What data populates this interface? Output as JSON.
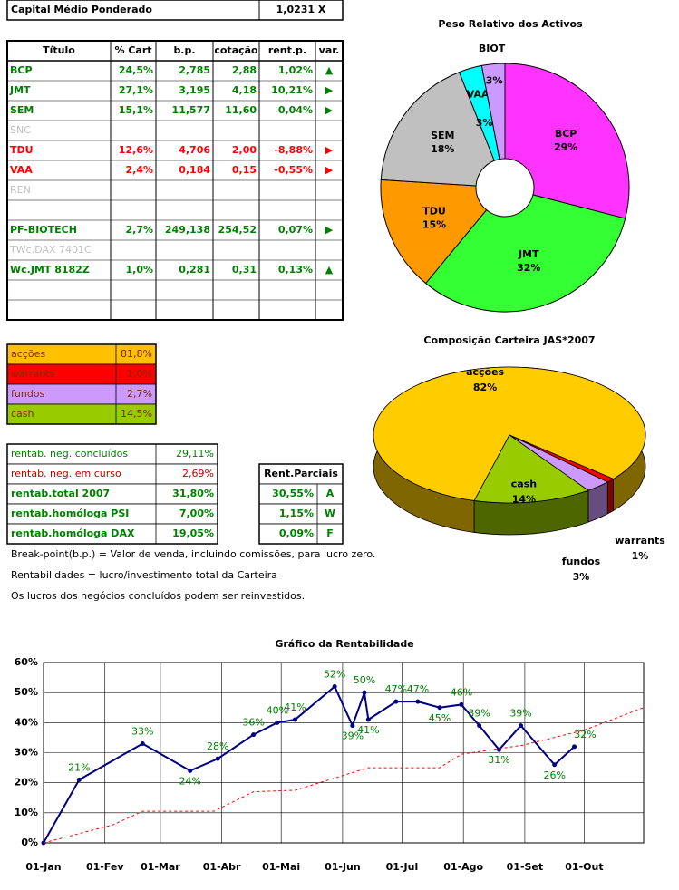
{
  "header": {
    "label": "Capital Médio Ponderado",
    "value": "1,0231 X"
  },
  "positions": {
    "columns": [
      "Título",
      "% Cart",
      "b.p.",
      "cotação",
      "rent.p.",
      "var."
    ],
    "rows": [
      {
        "cells": [
          "BCP",
          "24,5%",
          "2,785",
          "2,88",
          "1,02%",
          "▲"
        ],
        "color": "#008000",
        "bold": true
      },
      {
        "cells": [
          "JMT",
          "27,1%",
          "3,195",
          "4,18",
          "10,21%",
          "▶"
        ],
        "color": "#008000",
        "bold": true
      },
      {
        "cells": [
          "SEM",
          "15,1%",
          "11,577",
          "11,60",
          "0,04%",
          "▶"
        ],
        "color": "#008000",
        "bold": true
      },
      {
        "cells": [
          "SNC"
        ],
        "color": "#c0c0c0",
        "bold": false
      },
      {
        "cells": [
          "TDU",
          "12,6%",
          "4,706",
          "2,00",
          "-8,88%",
          "▶"
        ],
        "color": "#ff0000",
        "bold": true
      },
      {
        "cells": [
          "VAA",
          "2,4%",
          "0,184",
          "0,15",
          "-0,55%",
          "▶"
        ],
        "color": "#ff0000",
        "bold": true
      },
      {
        "cells": [
          "REN"
        ],
        "color": "#c0c0c0",
        "bold": false
      },
      {
        "cells": []
      },
      {
        "cells": [
          "PF-BIOTECH",
          "2,7%",
          "249,138",
          "254,52",
          "0,07%",
          "▶"
        ],
        "color": "#008000",
        "bold": true
      },
      {
        "cells": [
          "TWc.DAX 7401C"
        ],
        "color": "#c0c0c0",
        "bold": false
      },
      {
        "cells": [
          "Wc.JMT 8182Z",
          "1,0%",
          "0,281",
          "0,31",
          "0,13%",
          "▲"
        ],
        "color": "#008000",
        "bold": true
      },
      {
        "cells": []
      },
      {
        "cells": []
      }
    ]
  },
  "allocation": {
    "rows": [
      {
        "label": "acções",
        "value": "81,8%",
        "color": "#ffc000"
      },
      {
        "label": "warrants",
        "value": "1,0%",
        "color": "#ff0000"
      },
      {
        "label": "fundos",
        "value": "2,7%",
        "color": "#cc99ff"
      },
      {
        "label": "cash",
        "value": "14,5%",
        "color": "#99cc00"
      }
    ]
  },
  "returns": {
    "rows": [
      {
        "label": "rentab. neg. concluídos",
        "value": "29,11%",
        "color": "#008000",
        "bold": false
      },
      {
        "label": "rentab. neg. em curso",
        "value": "2,69%",
        "color": "#c00000",
        "bold": false
      },
      {
        "label": "rentab.total 2007",
        "value": "31,80%",
        "color": "#008000",
        "bold": true
      },
      {
        "label": "rentab.homóloga PSI",
        "value": "7,00%",
        "color": "#008000",
        "bold": true
      },
      {
        "label": "rentab.homóloga DAX",
        "value": "19,05%",
        "color": "#008000",
        "bold": true
      }
    ]
  },
  "partials": {
    "header": "Rent.Parciais",
    "rows": [
      [
        "30,55%",
        "A"
      ],
      [
        "1,15%",
        "W"
      ],
      [
        "0,09%",
        "F"
      ]
    ]
  },
  "notes": [
    "Break-point(b.p.) = Valor de venda, incluindo comissões, para lucro zero.",
    "Rentabilidades = lucro/investimento total da Carteira",
    "Os lucros dos negócios concluídos podem ser reinvestidos."
  ],
  "chart_data": [
    {
      "type": "donut",
      "title": "Peso Relativo dos Activos",
      "categories": [
        "BCP",
        "JMT",
        "TDU",
        "SEM",
        "VAA",
        "BIOT"
      ],
      "values": [
        29,
        32,
        15,
        18,
        3,
        3
      ],
      "value_labels": [
        "29%",
        "32%",
        "15%",
        "18%",
        "3%",
        "3%"
      ],
      "colors": [
        "#ff33ff",
        "#33ff33",
        "#ff9900",
        "#c0c0c0",
        "#00ffff",
        "#cc99ff"
      ]
    },
    {
      "type": "pie3d",
      "title": "Composição Carteira JAS*2007",
      "categories": [
        "acções",
        "warrants",
        "fundos",
        "cash"
      ],
      "values": [
        82,
        1,
        3,
        14
      ],
      "value_labels": [
        "82%",
        "1%",
        "3%",
        "14%"
      ],
      "colors": [
        "#ffcc00",
        "#ff0000",
        "#cc99ff",
        "#99cc00"
      ]
    },
    {
      "type": "line",
      "title": "Gráfico da Rentabilidade",
      "xlim": [
        0,
        303
      ],
      "xticks": [
        {
          "value": 0,
          "label": "01-Jan"
        },
        {
          "value": 31,
          "label": "01-Fev"
        },
        {
          "value": 59,
          "label": "01-Mar"
        },
        {
          "value": 90,
          "label": "01-Abr"
        },
        {
          "value": 120,
          "label": "01-Mai"
        },
        {
          "value": 151,
          "label": "01-Jun"
        },
        {
          "value": 181,
          "label": "01-Jul"
        },
        {
          "value": 212,
          "label": "01-Ago"
        },
        {
          "value": 243,
          "label": "01-Set"
        },
        {
          "value": 273,
          "label": "01-Out"
        }
      ],
      "ylim": [
        0,
        60
      ],
      "yticks": [
        {
          "value": 0,
          "label": "0%"
        },
        {
          "value": 10,
          "label": "10%"
        },
        {
          "value": 20,
          "label": "20%"
        },
        {
          "value": 30,
          "label": "30%"
        },
        {
          "value": 40,
          "label": "40%"
        },
        {
          "value": 50,
          "label": "50%"
        },
        {
          "value": 60,
          "label": "60%"
        }
      ],
      "grid": true,
      "series": [
        {
          "color": "#000080",
          "dashed": false,
          "x": [
            0,
            18,
            50,
            74,
            88,
            106,
            118,
            127,
            147,
            156,
            162,
            164,
            178,
            189,
            200,
            211,
            220,
            230,
            241,
            258,
            268
          ],
          "values": [
            0,
            21,
            33,
            24,
            28,
            36,
            40,
            41,
            52,
            39,
            50,
            41,
            47,
            47,
            45,
            46,
            39,
            31,
            39,
            26,
            32
          ],
          "value_labels": [
            null,
            "21%",
            "33%",
            "24%",
            "28%",
            "36%",
            "40%",
            "41%",
            "52%",
            "39%",
            "50%",
            "41%",
            "47%",
            "47%",
            "45%",
            "46%",
            "39%",
            "31%",
            "39%",
            "26%",
            "32%"
          ]
        },
        {
          "color": "#ff0000",
          "dashed": true,
          "x": [
            0,
            35,
            50,
            86,
            106,
            127,
            164,
            200,
            211,
            242,
            273,
            303
          ],
          "values": [
            0,
            6,
            10.5,
            10.5,
            17,
            17.5,
            25,
            25,
            29.5,
            32.5,
            37.5,
            45
          ]
        }
      ]
    }
  ]
}
